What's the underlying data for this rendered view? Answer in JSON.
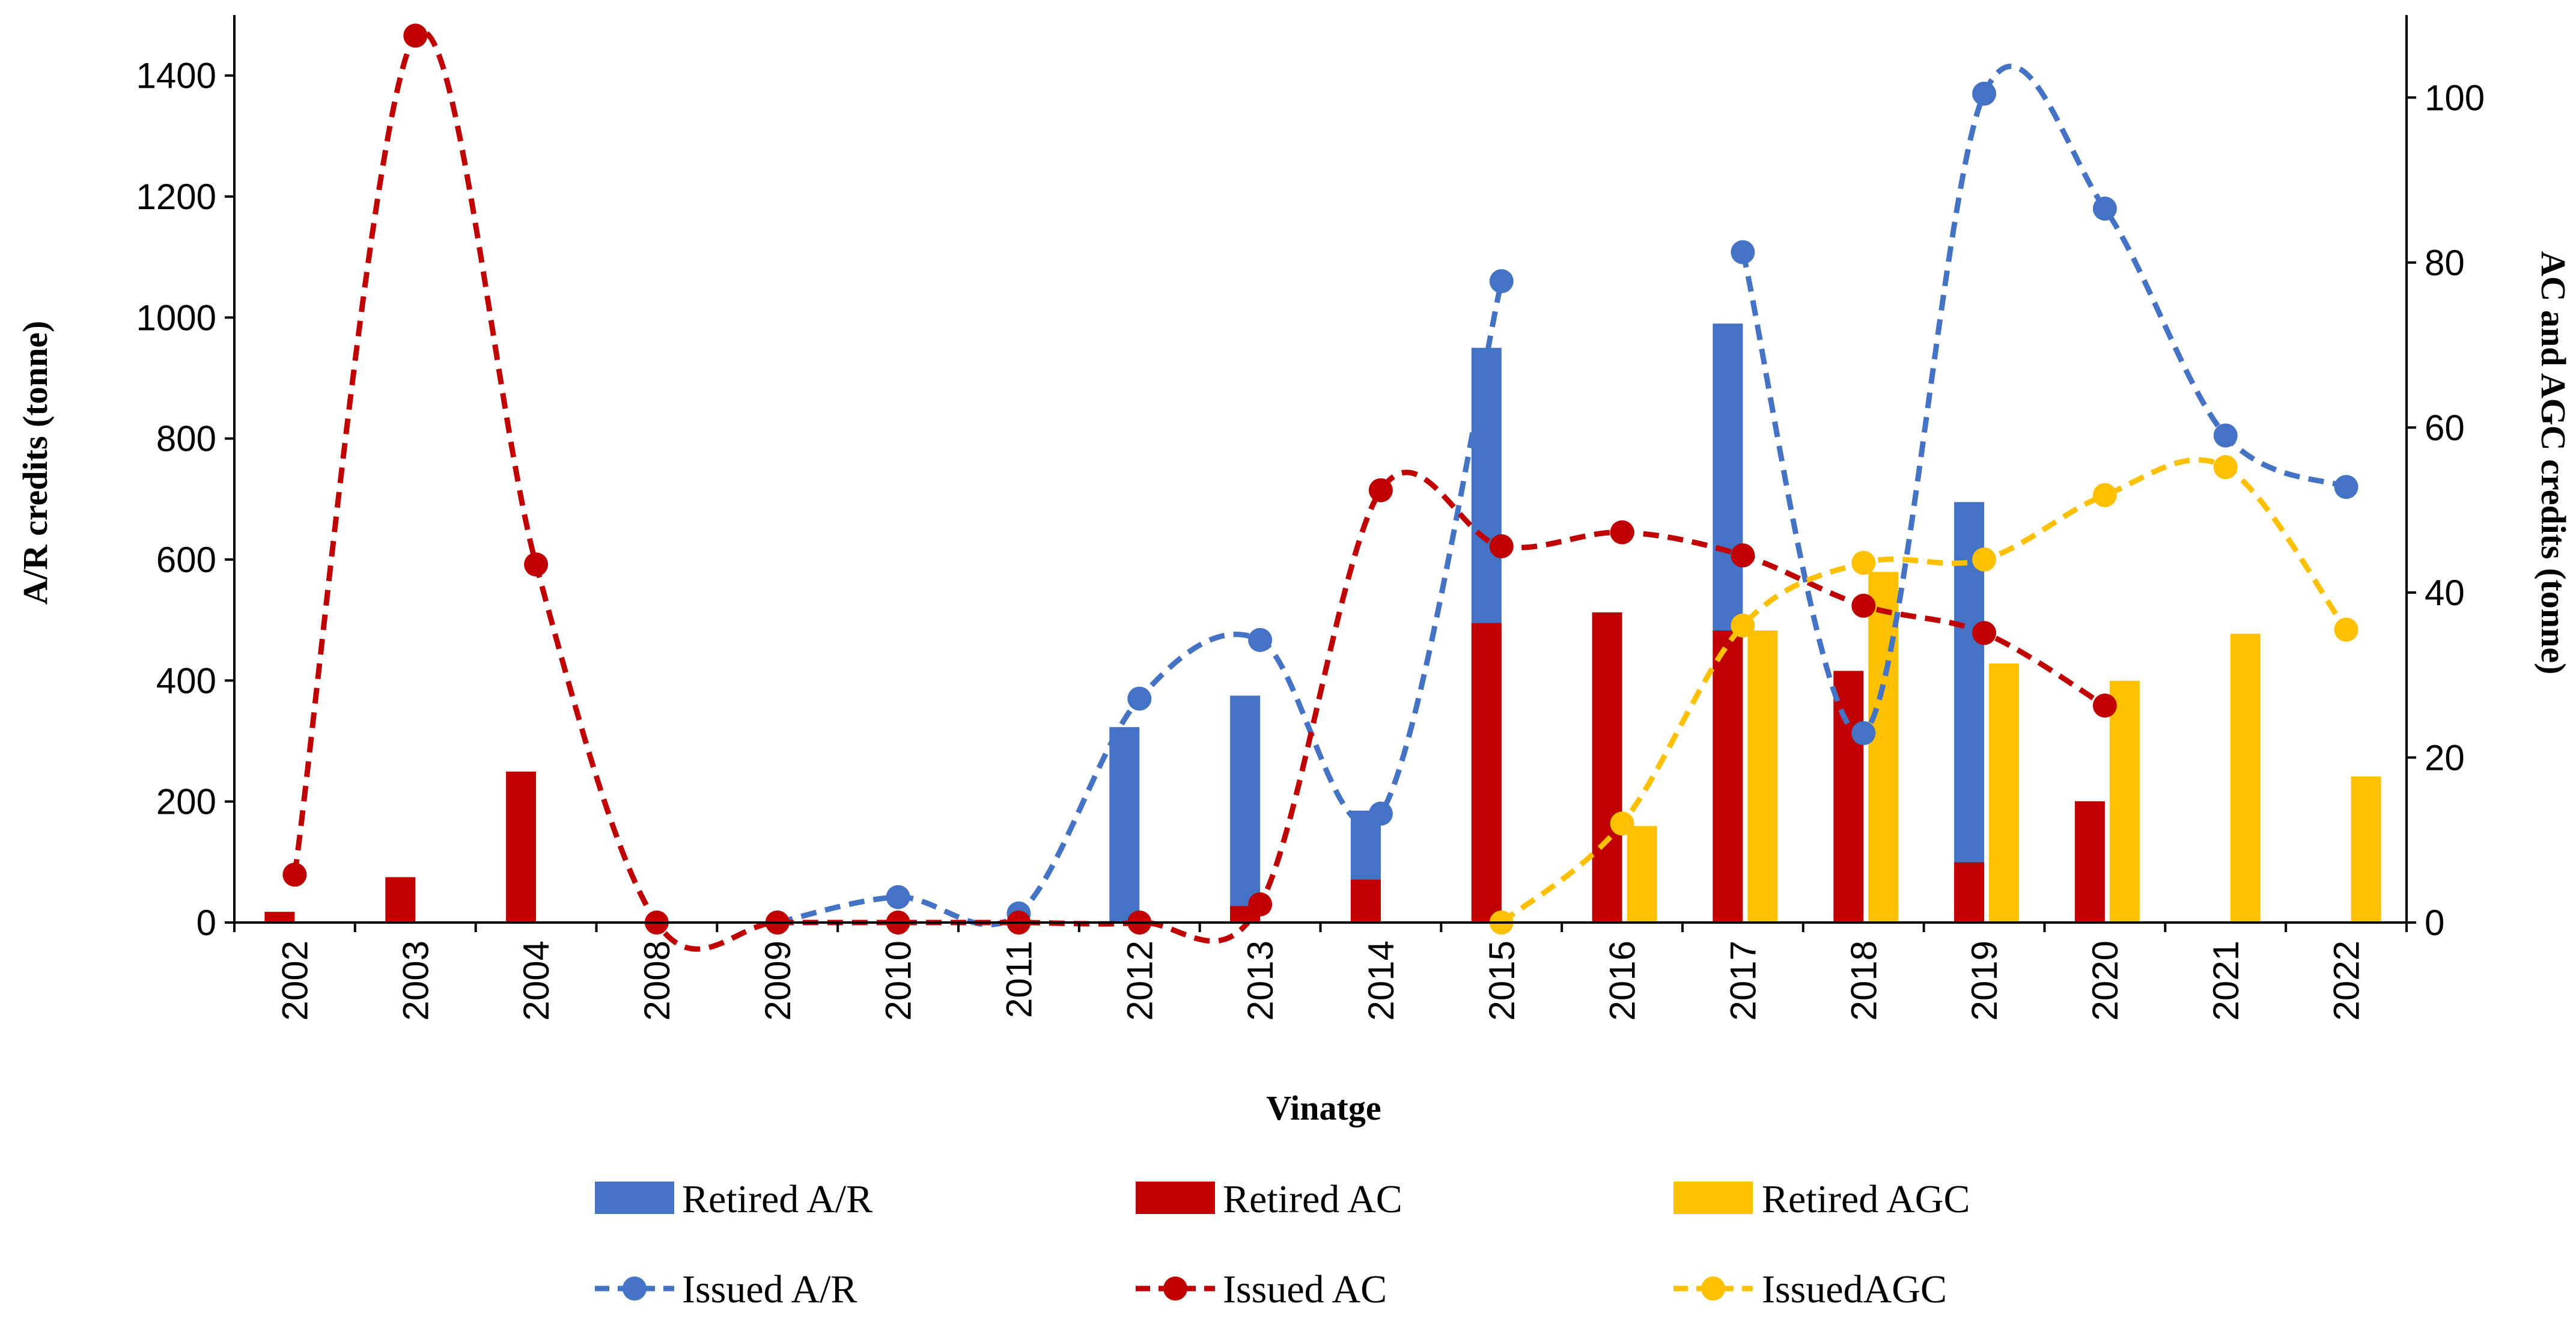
{
  "chart_data": {
    "type": "bar+line",
    "title": "",
    "xlabel": "Vinatge",
    "ylabel": "A/R credits (tonne)",
    "y2label": "AC and AGC credits (tonne)",
    "categories": [
      "2002",
      "2003",
      "2004",
      "2008",
      "2009",
      "2010",
      "2011",
      "2012",
      "2013",
      "2014",
      "2015",
      "2016",
      "2017",
      "2018",
      "2019",
      "2020",
      "2021",
      "2022"
    ],
    "ylim": [
      0,
      1500
    ],
    "y2lim": [
      0,
      110
    ],
    "yticks": [
      0,
      200,
      400,
      600,
      800,
      1000,
      1200,
      1400
    ],
    "y2ticks": [
      0,
      20,
      40,
      60,
      80,
      100
    ],
    "grid": false,
    "legend_position": "bottom",
    "colors": {
      "retired_ar": "#4472C4",
      "retired_ac": "#C00000",
      "retired_agc": "#FFC000",
      "issued_ar": "#4472C4",
      "issued_ac": "#C00000",
      "issued_agc": "#FFC000"
    },
    "bar_series": [
      {
        "key": "retired_ar",
        "name": "Retired A/R",
        "axis": "left",
        "values": [
          null,
          null,
          null,
          null,
          null,
          null,
          null,
          323,
          375,
          185,
          950,
          null,
          990,
          null,
          695,
          null,
          null,
          null
        ]
      },
      {
        "key": "retired_ac",
        "name": "Retired AC",
        "axis": "right",
        "values": [
          1.3,
          5.5,
          18.3,
          null,
          null,
          null,
          null,
          null,
          2.0,
          5.2,
          36.3,
          37.6,
          35.4,
          30.5,
          7.3,
          14.7,
          null,
          null
        ]
      },
      {
        "key": "retired_agc",
        "name": "Retired AGC",
        "axis": "right",
        "values": [
          null,
          null,
          null,
          null,
          null,
          null,
          null,
          null,
          null,
          null,
          null,
          11.7,
          35.4,
          42.5,
          31.4,
          29.3,
          35.0,
          17.7
        ]
      }
    ],
    "line_series": [
      {
        "key": "issued_ar",
        "name": "Issued A/R",
        "axis": "left",
        "values": [
          null,
          null,
          null,
          null,
          0,
          42,
          15,
          370,
          467,
          180,
          1060,
          null,
          1108,
          313,
          1370,
          1180,
          805,
          720
        ]
      },
      {
        "key": "issued_ac",
        "name": "Issued AC",
        "axis": "right",
        "values": [
          5.8,
          107.5,
          43.4,
          0,
          0,
          0,
          0,
          0,
          2.2,
          52.4,
          45.6,
          47.3,
          44.5,
          38.4,
          35.1,
          26.3,
          null,
          null
        ]
      },
      {
        "key": "issued_agc",
        "name": "IssuedAGC",
        "axis": "right",
        "values": [
          null,
          null,
          null,
          null,
          null,
          null,
          null,
          null,
          null,
          null,
          0,
          12,
          36,
          43.6,
          44,
          51.8,
          55.2,
          35.5
        ]
      }
    ]
  }
}
